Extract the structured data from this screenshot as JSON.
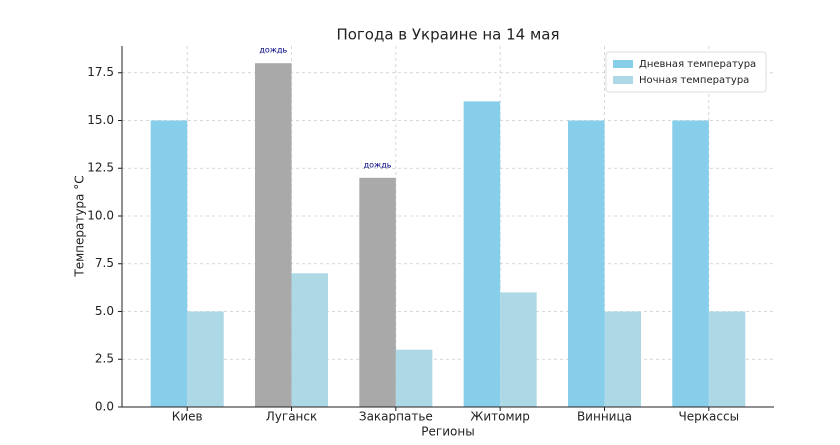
{
  "chart_data": {
    "type": "bar",
    "title": "Погода в Украине на 14 мая",
    "x_label": "Регионы",
    "y_label": "Температура °C",
    "categories": [
      "Киев",
      "Луганск",
      "Закарпатье",
      "Житомир",
      "Винница",
      "Черкассы"
    ],
    "series": [
      {
        "name": "Дневная температура",
        "color": "#87ceeb",
        "point_colors": [
          "#87ceeb",
          "#a9a9a9",
          "#a9a9a9",
          "#87ceeb",
          "#87ceeb",
          "#87ceeb"
        ],
        "values": [
          15,
          18,
          12,
          16,
          15,
          15
        ]
      },
      {
        "name": "Ночная температура",
        "color": "#add8e6",
        "values": [
          5,
          7,
          3,
          6,
          5,
          5
        ]
      }
    ],
    "annotations": [
      null,
      "дождь",
      "дождь",
      null,
      null,
      null
    ],
    "ylim": [
      0,
      18.9
    ],
    "yticks": [
      {
        "value": 0,
        "label": "0.0"
      },
      {
        "value": 2.5,
        "label": "2.5"
      },
      {
        "value": 5,
        "label": "5.0"
      },
      {
        "value": 7.5,
        "label": "7.5"
      },
      {
        "value": 10,
        "label": "10.0"
      },
      {
        "value": 12.5,
        "label": "12.5"
      },
      {
        "value": 15,
        "label": "15.0"
      },
      {
        "value": 17.5,
        "label": "17.5"
      }
    ],
    "grid": true,
    "legend": "upper right"
  }
}
